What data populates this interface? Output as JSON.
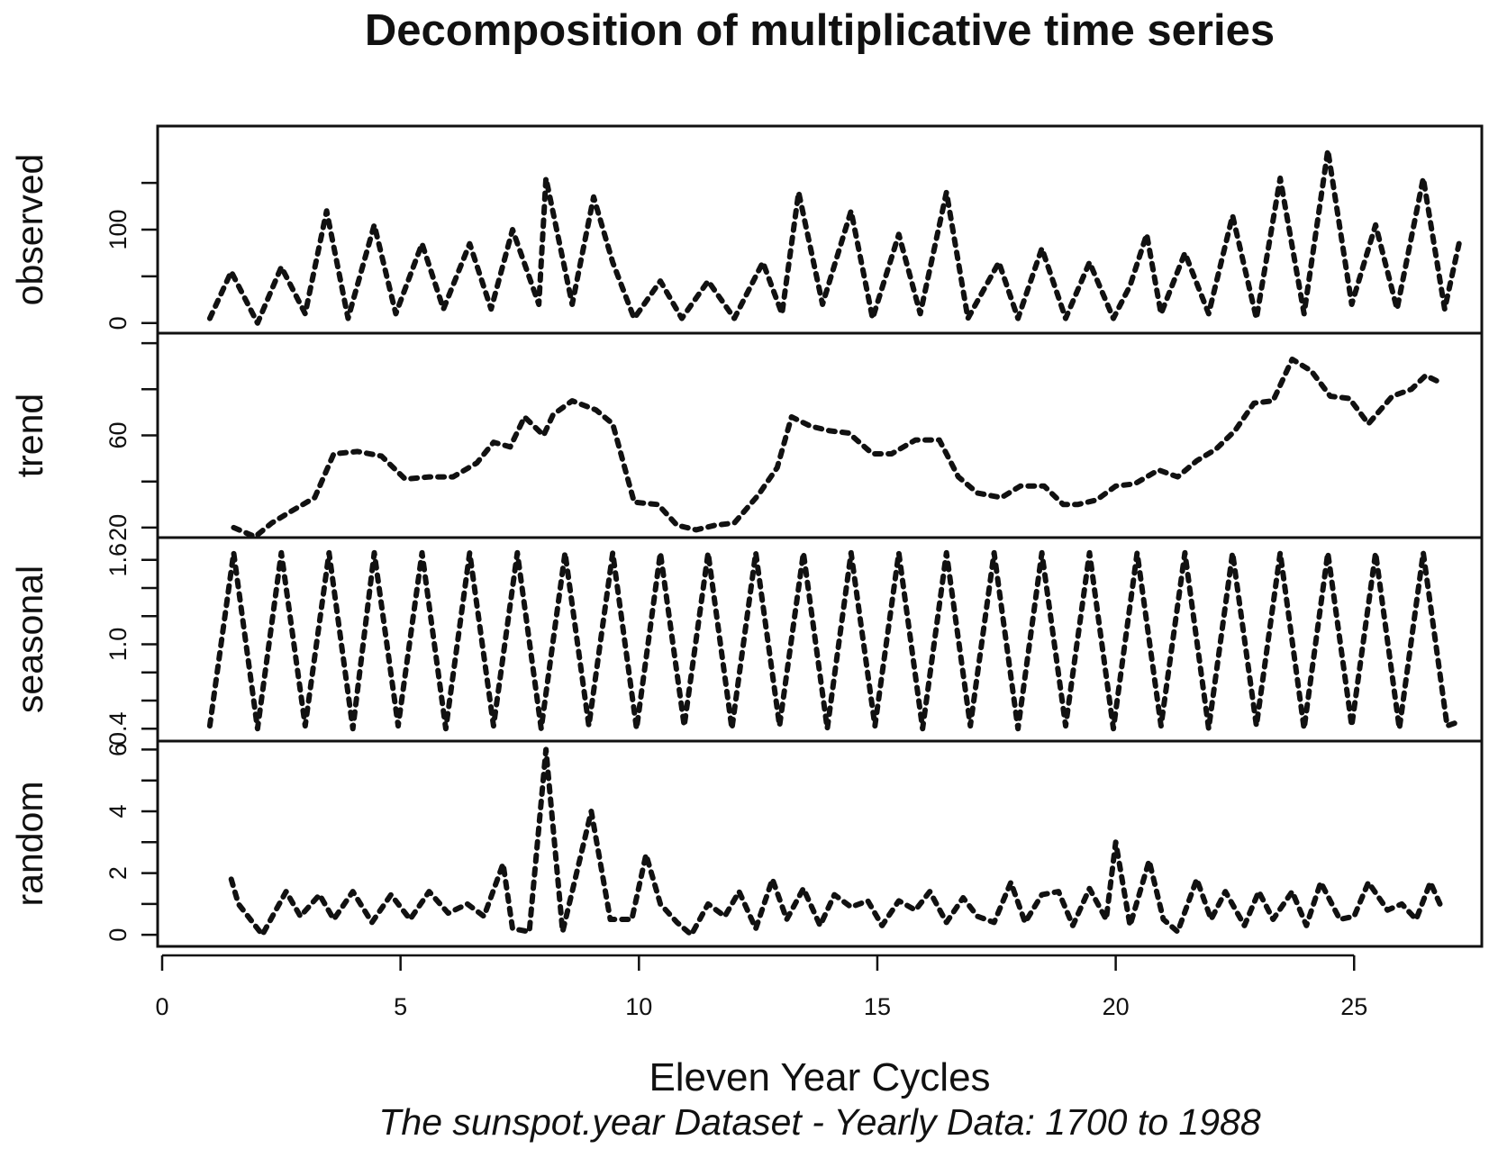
{
  "chart_data": {
    "type": "line",
    "title": "Decomposition of multiplicative time series",
    "xlabel": "Eleven Year Cycles",
    "subtitle": "The sunspot.year Dataset - Yearly Data: 1700 to 1988",
    "xlim": [
      0,
      27.3
    ],
    "xticks": [
      0,
      5,
      10,
      15,
      20,
      25
    ],
    "line_style": "dotted",
    "line_color": "#111111",
    "panels": [
      {
        "name": "observed",
        "ylim": [
          -5,
          205
        ],
        "yticks": [
          0,
          50,
          100,
          150
        ],
        "ytick_labels": [
          "0",
          "",
          "100",
          ""
        ],
        "x": [
          1.0,
          1.45,
          2.0,
          2.5,
          3.0,
          3.45,
          3.9,
          4.45,
          4.9,
          5.45,
          5.9,
          6.45,
          6.9,
          7.35,
          7.9,
          8.05,
          8.6,
          9.05,
          9.45,
          9.9,
          10.45,
          10.9,
          11.45,
          12.0,
          12.6,
          13.0,
          13.35,
          13.85,
          14.45,
          14.9,
          15.45,
          15.9,
          16.45,
          16.9,
          17.55,
          17.95,
          18.45,
          18.95,
          19.45,
          19.95,
          20.3,
          20.65,
          20.95,
          21.45,
          21.95,
          22.45,
          22.95,
          23.45,
          23.95,
          24.45,
          24.95,
          25.45,
          25.9,
          26.45,
          26.9,
          27.2
        ],
        "y": [
          5,
          55,
          0,
          60,
          10,
          120,
          5,
          105,
          10,
          85,
          15,
          85,
          15,
          100,
          20,
          155,
          20,
          135,
          65,
          5,
          45,
          5,
          45,
          5,
          65,
          10,
          140,
          20,
          120,
          5,
          95,
          10,
          140,
          5,
          65,
          5,
          80,
          5,
          65,
          5,
          40,
          95,
          10,
          75,
          10,
          115,
          5,
          155,
          10,
          185,
          20,
          105,
          15,
          155,
          15,
          85
        ]
      },
      {
        "name": "trend",
        "ylim": [
          18,
          102
        ],
        "yticks": [
          20,
          40,
          60,
          80,
          100
        ],
        "ytick_labels": [
          "20",
          "",
          "60",
          "",
          ""
        ],
        "x": [
          1.5,
          1.95,
          2.3,
          2.7,
          3.2,
          3.6,
          4.1,
          4.6,
          5.1,
          5.6,
          6.1,
          6.6,
          6.95,
          7.3,
          7.6,
          8.0,
          8.2,
          8.6,
          9.1,
          9.45,
          9.9,
          10.4,
          10.8,
          11.2,
          11.6,
          12.0,
          12.5,
          12.9,
          13.2,
          13.6,
          14.0,
          14.4,
          14.9,
          15.3,
          15.8,
          16.3,
          16.7,
          17.1,
          17.6,
          18.0,
          18.5,
          18.9,
          19.2,
          19.6,
          20.0,
          20.4,
          20.9,
          21.3,
          21.7,
          22.1,
          22.5,
          22.9,
          23.3,
          23.7,
          24.1,
          24.5,
          24.9,
          25.3,
          25.8,
          26.2,
          26.5,
          26.8
        ],
        "y": [
          20,
          16,
          22,
          27,
          33,
          52,
          53,
          51,
          41,
          42,
          42,
          48,
          57,
          55,
          68,
          60,
          69,
          75,
          71,
          65,
          31,
          30,
          21,
          19,
          21,
          22,
          34,
          46,
          68,
          64,
          62,
          61,
          52,
          52,
          58,
          58,
          42,
          35,
          33,
          38,
          38,
          30,
          30,
          32,
          38,
          39,
          45,
          42,
          49,
          54,
          62,
          74,
          75,
          93,
          88,
          77,
          76,
          65,
          77,
          80,
          86,
          83
        ]
      },
      {
        "name": "seasonal",
        "ylim": [
          0.35,
          1.72
        ],
        "yticks": [
          0.4,
          0.6,
          0.8,
          1.0,
          1.2,
          1.4,
          1.6
        ],
        "ytick_labels": [
          "0.4",
          "",
          "",
          "1.0",
          "",
          "",
          "1.6"
        ],
        "x": [
          1.0,
          1.5,
          2.0,
          2.5,
          3.0,
          3.5,
          4.0,
          4.45,
          4.95,
          5.45,
          5.95,
          6.45,
          6.95,
          7.45,
          7.95,
          8.45,
          8.95,
          9.45,
          9.95,
          10.45,
          10.95,
          11.45,
          11.95,
          12.45,
          12.95,
          13.45,
          13.95,
          14.45,
          14.95,
          15.45,
          15.95,
          16.45,
          16.95,
          17.45,
          17.95,
          18.45,
          18.95,
          19.45,
          19.95,
          20.45,
          20.95,
          21.45,
          21.95,
          22.45,
          22.95,
          23.45,
          23.95,
          24.45,
          24.95,
          25.45,
          25.95,
          26.45,
          26.95,
          27.2
        ],
        "y": [
          0.42,
          1.65,
          0.4,
          1.65,
          0.42,
          1.65,
          0.4,
          1.65,
          0.42,
          1.65,
          0.4,
          1.65,
          0.42,
          1.65,
          0.4,
          1.65,
          0.42,
          1.65,
          0.4,
          1.65,
          0.42,
          1.65,
          0.4,
          1.65,
          0.42,
          1.65,
          0.4,
          1.65,
          0.42,
          1.65,
          0.4,
          1.65,
          0.42,
          1.65,
          0.4,
          1.65,
          0.42,
          1.65,
          0.4,
          1.65,
          0.42,
          1.65,
          0.4,
          1.65,
          0.42,
          1.65,
          0.4,
          1.65,
          0.42,
          1.65,
          0.4,
          1.65,
          0.42,
          0.45
        ]
      },
      {
        "name": "random",
        "ylim": [
          -0.2,
          6.1
        ],
        "yticks": [
          0,
          1,
          2,
          3,
          4,
          5,
          6
        ],
        "ytick_labels": [
          "0",
          "",
          "2",
          "",
          "4",
          "",
          "6"
        ],
        "x": [
          1.45,
          1.6,
          2.1,
          2.6,
          2.9,
          3.3,
          3.6,
          4.0,
          4.4,
          4.8,
          5.2,
          5.6,
          6.0,
          6.4,
          6.75,
          7.15,
          7.35,
          7.7,
          8.05,
          8.4,
          9.0,
          9.4,
          9.85,
          10.15,
          10.45,
          10.8,
          11.1,
          11.45,
          11.8,
          12.1,
          12.45,
          12.8,
          13.1,
          13.45,
          13.8,
          14.1,
          14.45,
          14.8,
          15.1,
          15.45,
          15.8,
          16.1,
          16.45,
          16.8,
          17.1,
          17.45,
          17.8,
          18.1,
          18.45,
          18.8,
          19.1,
          19.45,
          19.8,
          20.0,
          20.3,
          20.7,
          21.0,
          21.3,
          21.7,
          22.0,
          22.3,
          22.7,
          23.0,
          23.3,
          23.7,
          24.0,
          24.3,
          24.7,
          25.0,
          25.3,
          25.7,
          26.0,
          26.3,
          26.6,
          26.8
        ],
        "y": [
          1.8,
          1.0,
          0.0,
          1.4,
          0.6,
          1.3,
          0.5,
          1.4,
          0.4,
          1.3,
          0.5,
          1.4,
          0.7,
          1.0,
          0.6,
          2.3,
          0.2,
          0.1,
          6.0,
          0.1,
          4.0,
          0.5,
          0.5,
          2.6,
          1.0,
          0.4,
          0.0,
          1.0,
          0.6,
          1.4,
          0.2,
          1.8,
          0.5,
          1.5,
          0.3,
          1.3,
          0.9,
          1.1,
          0.3,
          1.1,
          0.8,
          1.4,
          0.4,
          1.2,
          0.6,
          0.4,
          1.7,
          0.4,
          1.3,
          1.4,
          0.3,
          1.5,
          0.5,
          3.0,
          0.3,
          2.4,
          0.5,
          0.1,
          1.8,
          0.5,
          1.4,
          0.3,
          1.4,
          0.5,
          1.4,
          0.3,
          1.7,
          0.5,
          0.6,
          1.7,
          0.8,
          1.0,
          0.5,
          1.7,
          1.0
        ]
      }
    ]
  }
}
